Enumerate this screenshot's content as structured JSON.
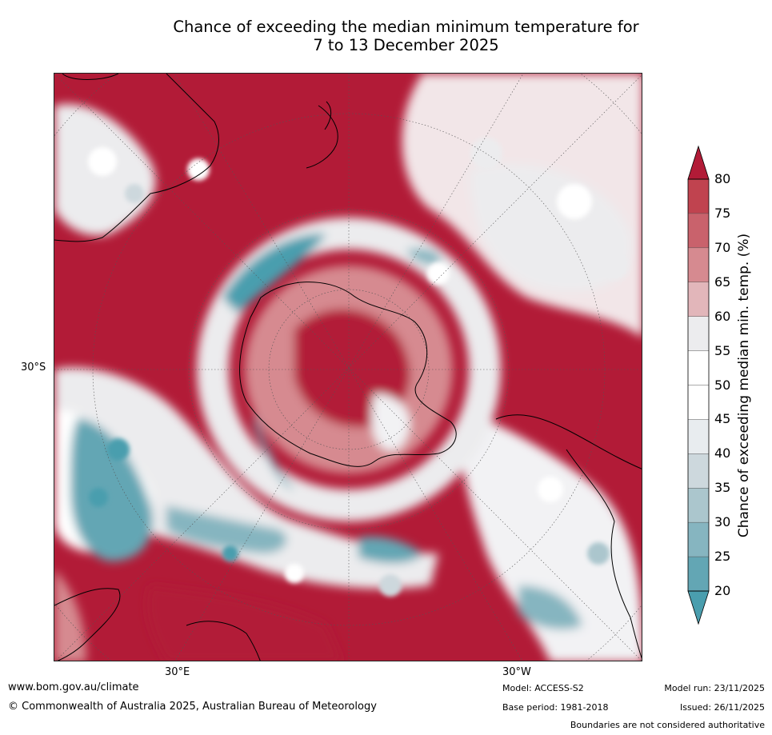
{
  "title": {
    "line1": "Chance of exceeding the median minimum temperature for",
    "line2": "7 to 13 December 2025"
  },
  "map": {
    "projection": "south-polar stereographic",
    "graticule_labels": {
      "lat": "30°S",
      "lon_left": "30°E",
      "lon_right": "30°W"
    },
    "regions": [
      "Australia",
      "New Zealand",
      "Antarctica",
      "South America",
      "Southern Africa",
      "Madagascar"
    ]
  },
  "colorbar": {
    "title": "Chance of exceeding median min. temp. (%)",
    "ticks": [
      "80",
      "75",
      "70",
      "65",
      "60",
      "55",
      "50",
      "45",
      "40",
      "35",
      "30",
      "25",
      "20"
    ],
    "colors": [
      "#b21b37",
      "#c0434f",
      "#c9626c",
      "#d68a90",
      "#e2b6ba",
      "#ececee",
      "#ffffff",
      "#ffffff",
      "#e8ecef",
      "#cdd8dd",
      "#abc6cd",
      "#86b5c0",
      "#63a6b4",
      "#4a9eae"
    ],
    "extend_over_color": "#b21b37",
    "extend_under_color": "#4a9eae"
  },
  "footer": {
    "url": "www.bom.gov.au/climate",
    "copyright": "© Commonwealth of Australia 2025, Australian Bureau of Meteorology",
    "model": "Model: ACCESS-S2",
    "base_period": "Base period: 1981-2018",
    "model_run": "Model run: 23/11/2025",
    "issued": "Issued: 26/11/2025",
    "disclaimer": "Boundaries are not considered authoritative"
  }
}
